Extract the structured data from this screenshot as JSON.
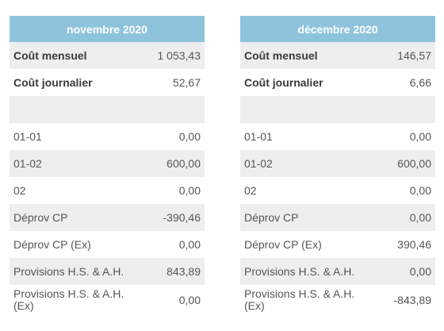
{
  "tables": [
    {
      "title": "novembre 2020",
      "rows": [
        {
          "label": "Coût mensuel",
          "value": "1 053,43",
          "bold": true
        },
        {
          "label": "Coût journalier",
          "value": "52,67",
          "bold": true
        },
        {
          "label": "",
          "value": ""
        },
        {
          "label": "01-01",
          "value": "0,00"
        },
        {
          "label": "01-02",
          "value": "600,00"
        },
        {
          "label": "02",
          "value": "0,00"
        },
        {
          "label": "Déprov CP",
          "value": "-390,46"
        },
        {
          "label": "Déprov CP (Ex)",
          "value": "0,00"
        },
        {
          "label": "Provisions H.S. & A.H.",
          "value": "843,89"
        },
        {
          "label": "Provisions H.S. & A.H. (Ex)",
          "value": "0,00"
        }
      ]
    },
    {
      "title": "décembre 2020",
      "rows": [
        {
          "label": "Coût mensuel",
          "value": "146,57",
          "bold": true
        },
        {
          "label": "Coût journalier",
          "value": "6,66",
          "bold": true
        },
        {
          "label": "",
          "value": ""
        },
        {
          "label": "01-01",
          "value": "0,00"
        },
        {
          "label": "01-02",
          "value": "600,00"
        },
        {
          "label": "02",
          "value": "0,00"
        },
        {
          "label": "Déprov CP",
          "value": "0,00"
        },
        {
          "label": "Déprov CP (Ex)",
          "value": "390,46"
        },
        {
          "label": "Provisions H.S. & A.H.",
          "value": "0,00"
        },
        {
          "label": "Provisions H.S. & A.H. (Ex)",
          "value": "-843,89"
        }
      ]
    }
  ]
}
